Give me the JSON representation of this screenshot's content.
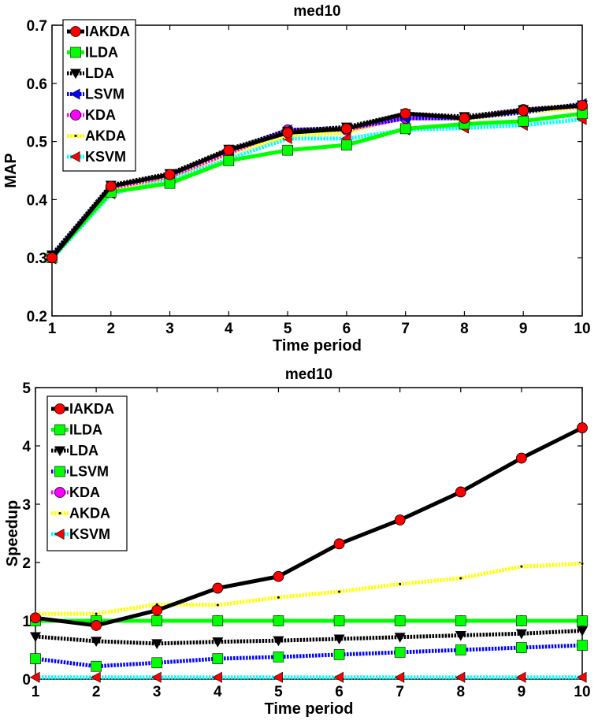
{
  "chart_data": [
    {
      "type": "line",
      "title": "med10",
      "xlabel": "Time period",
      "ylabel": "MAP",
      "xlim": [
        1,
        10
      ],
      "ylim": [
        0.2,
        0.7
      ],
      "xticks": [
        "1",
        "2",
        "3",
        "4",
        "5",
        "6",
        "7",
        "8",
        "9",
        "10"
      ],
      "yticks": [
        "0.2",
        "0.3",
        "0.4",
        "0.5",
        "0.6",
        "0.7"
      ],
      "grid": false,
      "legend_position": "top-left",
      "x": [
        1,
        2,
        3,
        4,
        5,
        6,
        7,
        8,
        9,
        10
      ],
      "series": [
        {
          "name": "IAKDA",
          "color": "#ff0000",
          "line_color": "#000000",
          "marker": "circle",
          "style": "solid",
          "values": [
            0.3,
            0.423,
            0.443,
            0.485,
            0.515,
            0.522,
            0.548,
            0.54,
            0.553,
            0.562
          ]
        },
        {
          "name": "ILDA",
          "color": "#00ff00",
          "line_color": "#00ff00",
          "marker": "square",
          "style": "solid",
          "values": [
            0.3,
            0.413,
            0.428,
            0.467,
            0.485,
            0.494,
            0.522,
            0.53,
            0.535,
            0.548
          ]
        },
        {
          "name": "LDA",
          "color": "#000000",
          "line_color": "#000000",
          "marker": "triangle-down",
          "style": "dotted",
          "values": [
            0.305,
            0.425,
            0.445,
            0.487,
            0.518,
            0.525,
            0.548,
            0.543,
            0.555,
            0.563
          ]
        },
        {
          "name": "LSVM",
          "color": "#0000ff",
          "line_color": "#0000ff",
          "marker": "triangle-left",
          "style": "dotted",
          "values": [
            0.303,
            0.423,
            0.443,
            0.485,
            0.52,
            0.523,
            0.54,
            0.54,
            0.55,
            0.565
          ]
        },
        {
          "name": "KDA",
          "color": "#ff00ff",
          "line_color": "#ff00ff",
          "marker": "circle",
          "style": "dotted",
          "values": [
            0.3,
            0.42,
            0.44,
            0.48,
            0.52,
            0.52,
            0.54,
            0.54,
            0.555,
            0.56
          ]
        },
        {
          "name": "AKDA",
          "color": "#ffff00",
          "line_color": "#ffff00",
          "marker": "none",
          "style": "dotted",
          "values": [
            0.3,
            0.418,
            0.438,
            0.478,
            0.51,
            0.515,
            0.545,
            0.538,
            0.55,
            0.558
          ]
        },
        {
          "name": "KSVM",
          "color": "#ff0000",
          "line_color": "#00ffff",
          "marker": "triangle-left",
          "style": "dotted",
          "values": [
            0.298,
            0.41,
            0.435,
            0.47,
            0.505,
            0.505,
            0.52,
            0.523,
            0.528,
            0.538
          ]
        }
      ]
    },
    {
      "type": "line",
      "title": "med10",
      "xlabel": "Time period",
      "ylabel": "Speedup",
      "xlim": [
        1,
        10
      ],
      "ylim": [
        0,
        5
      ],
      "xticks": [
        "1",
        "2",
        "3",
        "4",
        "5",
        "6",
        "7",
        "8",
        "9",
        "10"
      ],
      "yticks": [
        "0",
        "1",
        "2",
        "3",
        "4",
        "5"
      ],
      "grid": false,
      "legend_position": "top-left",
      "x": [
        1,
        2,
        3,
        4,
        5,
        6,
        7,
        8,
        9,
        10
      ],
      "series": [
        {
          "name": "IAKDA",
          "color": "#ff0000",
          "line_color": "#000000",
          "marker": "circle",
          "style": "solid",
          "values": [
            1.05,
            0.92,
            1.18,
            1.56,
            1.76,
            2.32,
            2.73,
            3.21,
            3.79,
            4.31
          ]
        },
        {
          "name": "ILDA",
          "color": "#00ff00",
          "line_color": "#00ff00",
          "marker": "square",
          "style": "solid",
          "values": [
            1.0,
            1.0,
            1.0,
            1.0,
            1.0,
            1.0,
            1.0,
            1.0,
            1.0,
            1.0
          ]
        },
        {
          "name": "LDA",
          "color": "#000000",
          "line_color": "#000000",
          "marker": "triangle-down",
          "style": "dotted",
          "values": [
            0.73,
            0.65,
            0.61,
            0.64,
            0.66,
            0.69,
            0.72,
            0.75,
            0.78,
            0.83
          ]
        },
        {
          "name": "LSVM",
          "color": "#00ff00",
          "line_color": "#0000ff",
          "marker": "square",
          "style": "dotted",
          "values": [
            0.35,
            0.22,
            0.28,
            0.35,
            0.38,
            0.42,
            0.46,
            0.5,
            0.54,
            0.58
          ]
        },
        {
          "name": "KDA",
          "color": "#ff00ff",
          "line_color": "#ff00ff",
          "marker": "circle",
          "style": "dotted",
          "values": [
            1.0,
            1.0,
            1.0,
            1.0,
            1.0,
            1.0,
            1.0,
            1.0,
            1.0,
            1.0
          ]
        },
        {
          "name": "AKDA",
          "color": "#ffff00",
          "line_color": "#ffff00",
          "marker": "none",
          "style": "dotted",
          "values": [
            1.12,
            1.12,
            1.28,
            1.27,
            1.4,
            1.5,
            1.63,
            1.73,
            1.93,
            1.98
          ]
        },
        {
          "name": "KSVM",
          "color": "#ff0000",
          "line_color": "#00ffff",
          "marker": "triangle-left",
          "style": "dotted",
          "values": [
            0.03,
            0.03,
            0.03,
            0.03,
            0.03,
            0.03,
            0.03,
            0.03,
            0.03,
            0.03
          ]
        }
      ]
    }
  ]
}
